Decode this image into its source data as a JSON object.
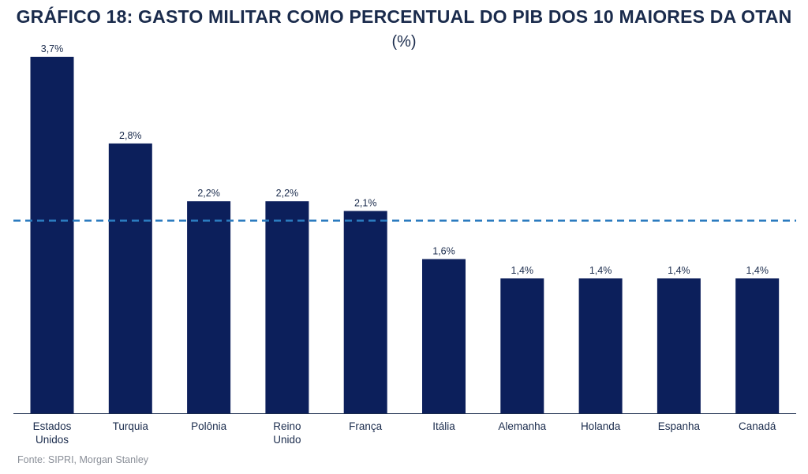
{
  "header": {
    "title": "GRÁFICO 18: GASTO MILITAR COMO PERCENTUAL DO PIB DOS 10 MAIORES DA OTAN",
    "subtitle": "(%)"
  },
  "footer": {
    "source": "Fonte: SIPRI, Morgan Stanley"
  },
  "colors": {
    "bar": "#0c1f5b",
    "reference_line": "#2b7bbf",
    "axis": "#1a2b4c",
    "text": "#1a2b4c"
  },
  "chart_data": {
    "type": "bar",
    "title": "GRÁFICO 18: GASTO MILITAR COMO PERCENTUAL DO PIB DOS 10 MAIORES DA OTAN",
    "subtitle": "(%)",
    "categories": [
      [
        "Estados",
        "Unidos"
      ],
      [
        "Turquia"
      ],
      [
        "Polônia"
      ],
      [
        "Reino",
        "Unido"
      ],
      [
        "França"
      ],
      [
        "Itália"
      ],
      [
        "Alemanha"
      ],
      [
        "Holanda"
      ],
      [
        "Espanha"
      ],
      [
        "Canadá"
      ]
    ],
    "values": [
      3.7,
      2.8,
      2.2,
      2.2,
      2.1,
      1.6,
      1.4,
      1.4,
      1.4,
      1.4
    ],
    "value_labels": [
      "3,7%",
      "2,8%",
      "2,2%",
      "2,2%",
      "2,1%",
      "1,6%",
      "1,4%",
      "1,4%",
      "1,4%",
      "1,4%"
    ],
    "reference_line": {
      "value": 2.0,
      "style": "dashed"
    },
    "xlabel": "",
    "ylabel": "",
    "ylim": [
      0,
      3.7
    ],
    "grid": false,
    "legend": "none"
  }
}
